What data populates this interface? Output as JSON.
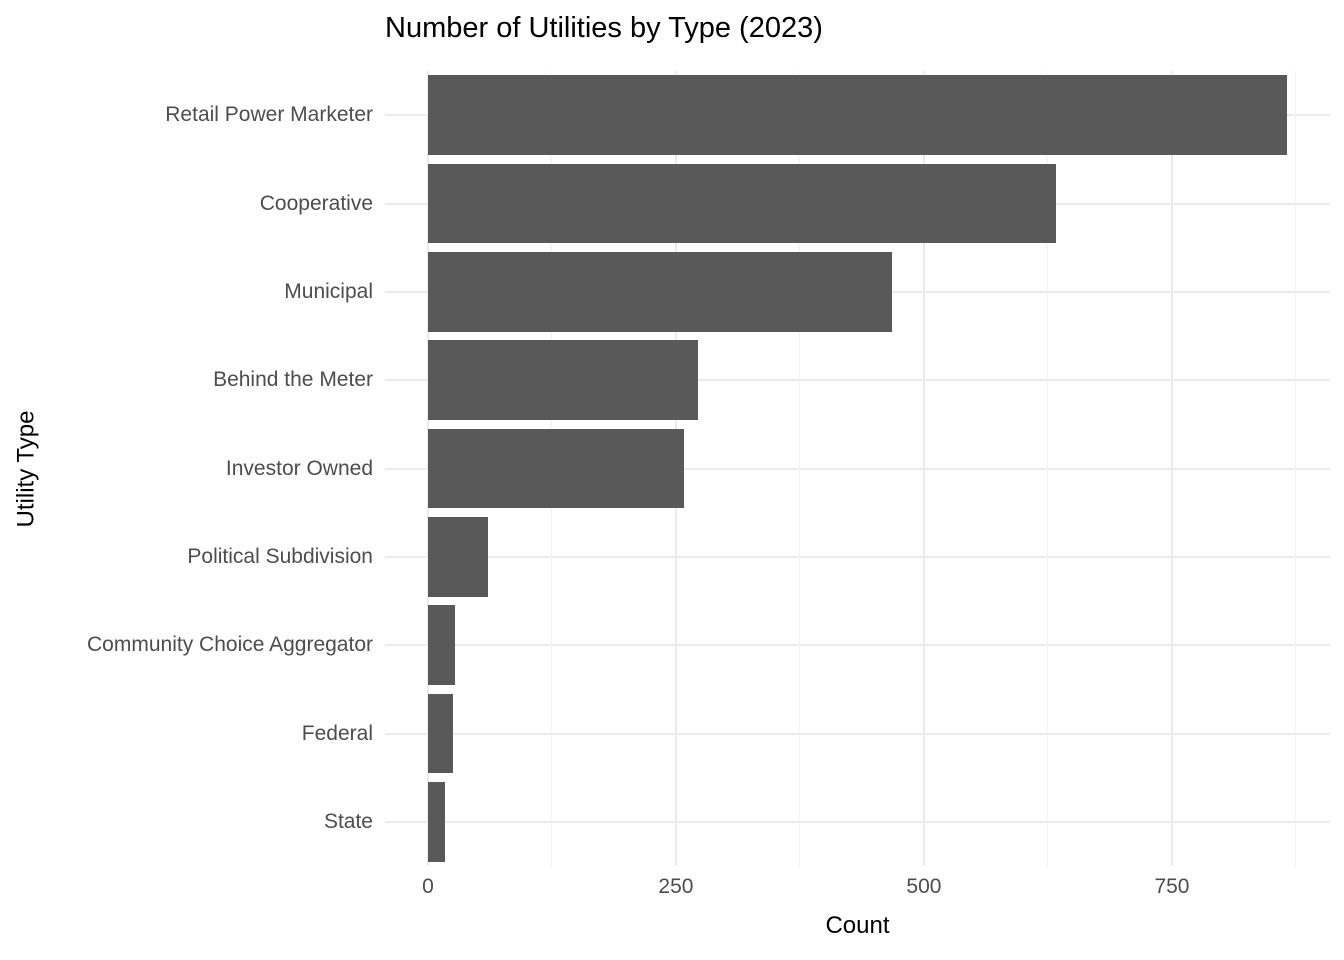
{
  "chart_data": {
    "type": "bar",
    "orientation": "horizontal",
    "title": "Number of Utilities by Type (2023)",
    "xlabel": "Count",
    "ylabel": "Utility Type",
    "categories": [
      "Retail Power Marketer",
      "Cooperative",
      "Municipal",
      "Behind the Meter",
      "Investor Owned",
      "Political Subdivision",
      "Community Choice Aggregator",
      "Federal",
      "State"
    ],
    "values": [
      866,
      633,
      468,
      272,
      258,
      61,
      27,
      25,
      17
    ],
    "x_ticks_major": [
      0,
      250,
      500,
      750
    ],
    "x_ticks_minor": [
      125,
      375,
      625,
      875
    ],
    "xlim": [
      0,
      866
    ],
    "axis_expansion_fraction": 0.05,
    "bar_width_fraction": 0.9,
    "grid": true,
    "legend_position": "none",
    "colors": {
      "bar_fill": "#595959",
      "grid_major": "#EBEBEB",
      "grid_minor": "#F0F0F0",
      "tick_label": "#4D4D4D",
      "title": "#000000",
      "background": "#FFFFFF"
    }
  }
}
